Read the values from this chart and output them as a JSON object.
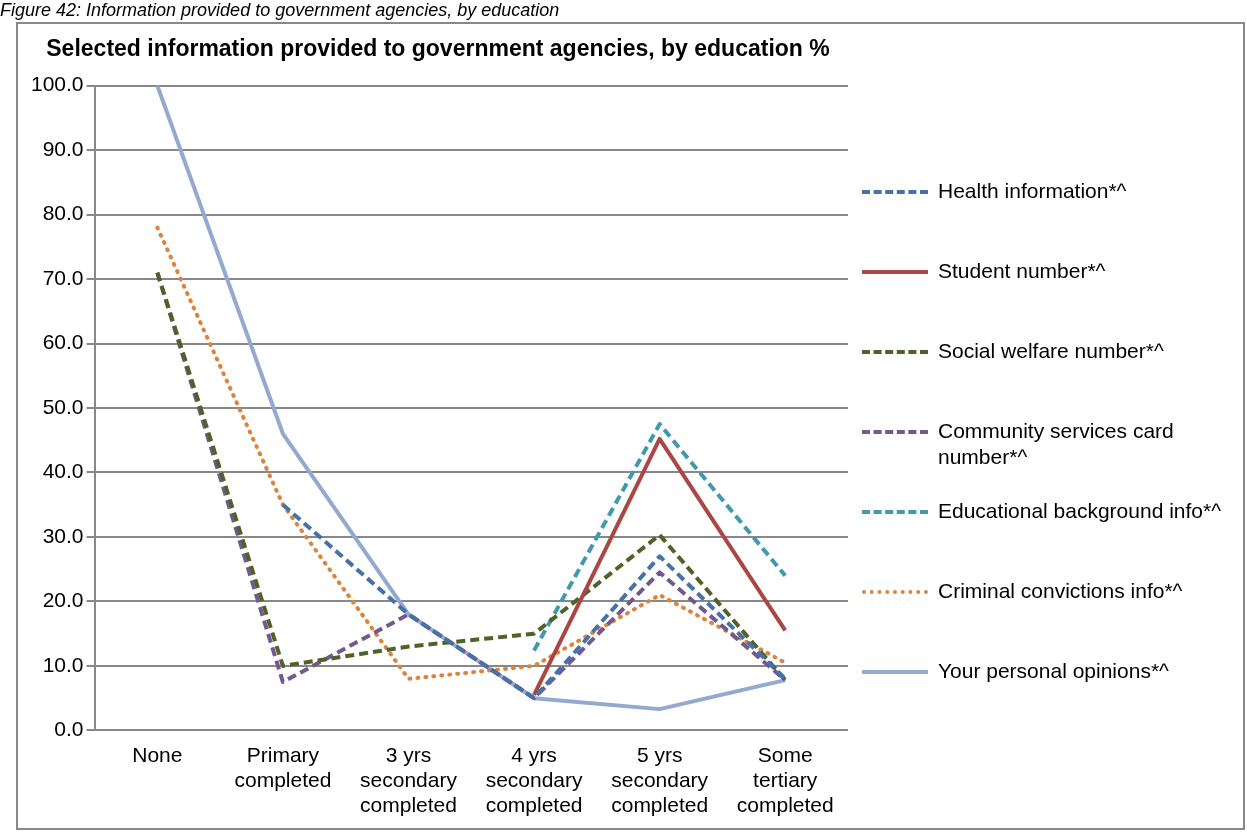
{
  "chart_data": {
    "type": "line",
    "title": "Selected information provided to government agencies, by education %",
    "annotations": [
      "Figure 42: Information provided to government agencies, by education"
    ],
    "categories": [
      "None",
      "Primary completed",
      "3 yrs secondary completed",
      "4 yrs secondary completed",
      "5 yrs secondary completed",
      "Some tertiary completed"
    ],
    "series": [
      {
        "name": "Health information*^",
        "color": "#4572a7",
        "line_style": "dashed",
        "values": [
          null,
          35,
          18,
          5,
          27,
          8
        ]
      },
      {
        "name": "Student number*^",
        "color": "#aa4643",
        "line_style": "solid",
        "values": [
          null,
          null,
          null,
          5.5,
          45.2,
          15.5
        ]
      },
      {
        "name": "Social welfare number*^",
        "color": "#4f6228",
        "line_style": "dashed",
        "values": [
          71,
          10,
          13,
          15,
          30.3,
          7.8
        ]
      },
      {
        "name": "Community services card number*^",
        "color": "#71588f",
        "line_style": "dashed",
        "values": [
          71,
          7.5,
          18,
          5,
          24.5,
          7.8
        ]
      },
      {
        "name": "Educational background info*^",
        "color": "#4198af",
        "line_style": "dashed",
        "values": [
          null,
          null,
          null,
          12.4,
          47.5,
          24
        ]
      },
      {
        "name": "Criminal convictions info*^",
        "color": "#db843d",
        "line_style": "dotted",
        "values": [
          78,
          35,
          8,
          10,
          21,
          10.5
        ]
      },
      {
        "name": "Your personal opinions*^",
        "color": "#93a9cf",
        "line_style": "solid",
        "values": [
          100,
          46,
          18,
          5,
          3.3,
          7.8
        ]
      }
    ],
    "ylim": [
      0,
      100
    ],
    "yticks": [
      {
        "value": 0,
        "label": "0.0"
      },
      {
        "value": 10,
        "label": "10.0"
      },
      {
        "value": 20,
        "label": "20.0"
      },
      {
        "value": 30,
        "label": "30.0"
      },
      {
        "value": 40,
        "label": "40.0"
      },
      {
        "value": 50,
        "label": "50.0"
      },
      {
        "value": 60,
        "label": "60.0"
      },
      {
        "value": 70,
        "label": "70.0"
      },
      {
        "value": 80,
        "label": "80.0"
      },
      {
        "value": 90,
        "label": "90.0"
      },
      {
        "value": 100,
        "label": "100.0"
      }
    ],
    "grid": "y",
    "legend": "right",
    "marker": "none"
  }
}
